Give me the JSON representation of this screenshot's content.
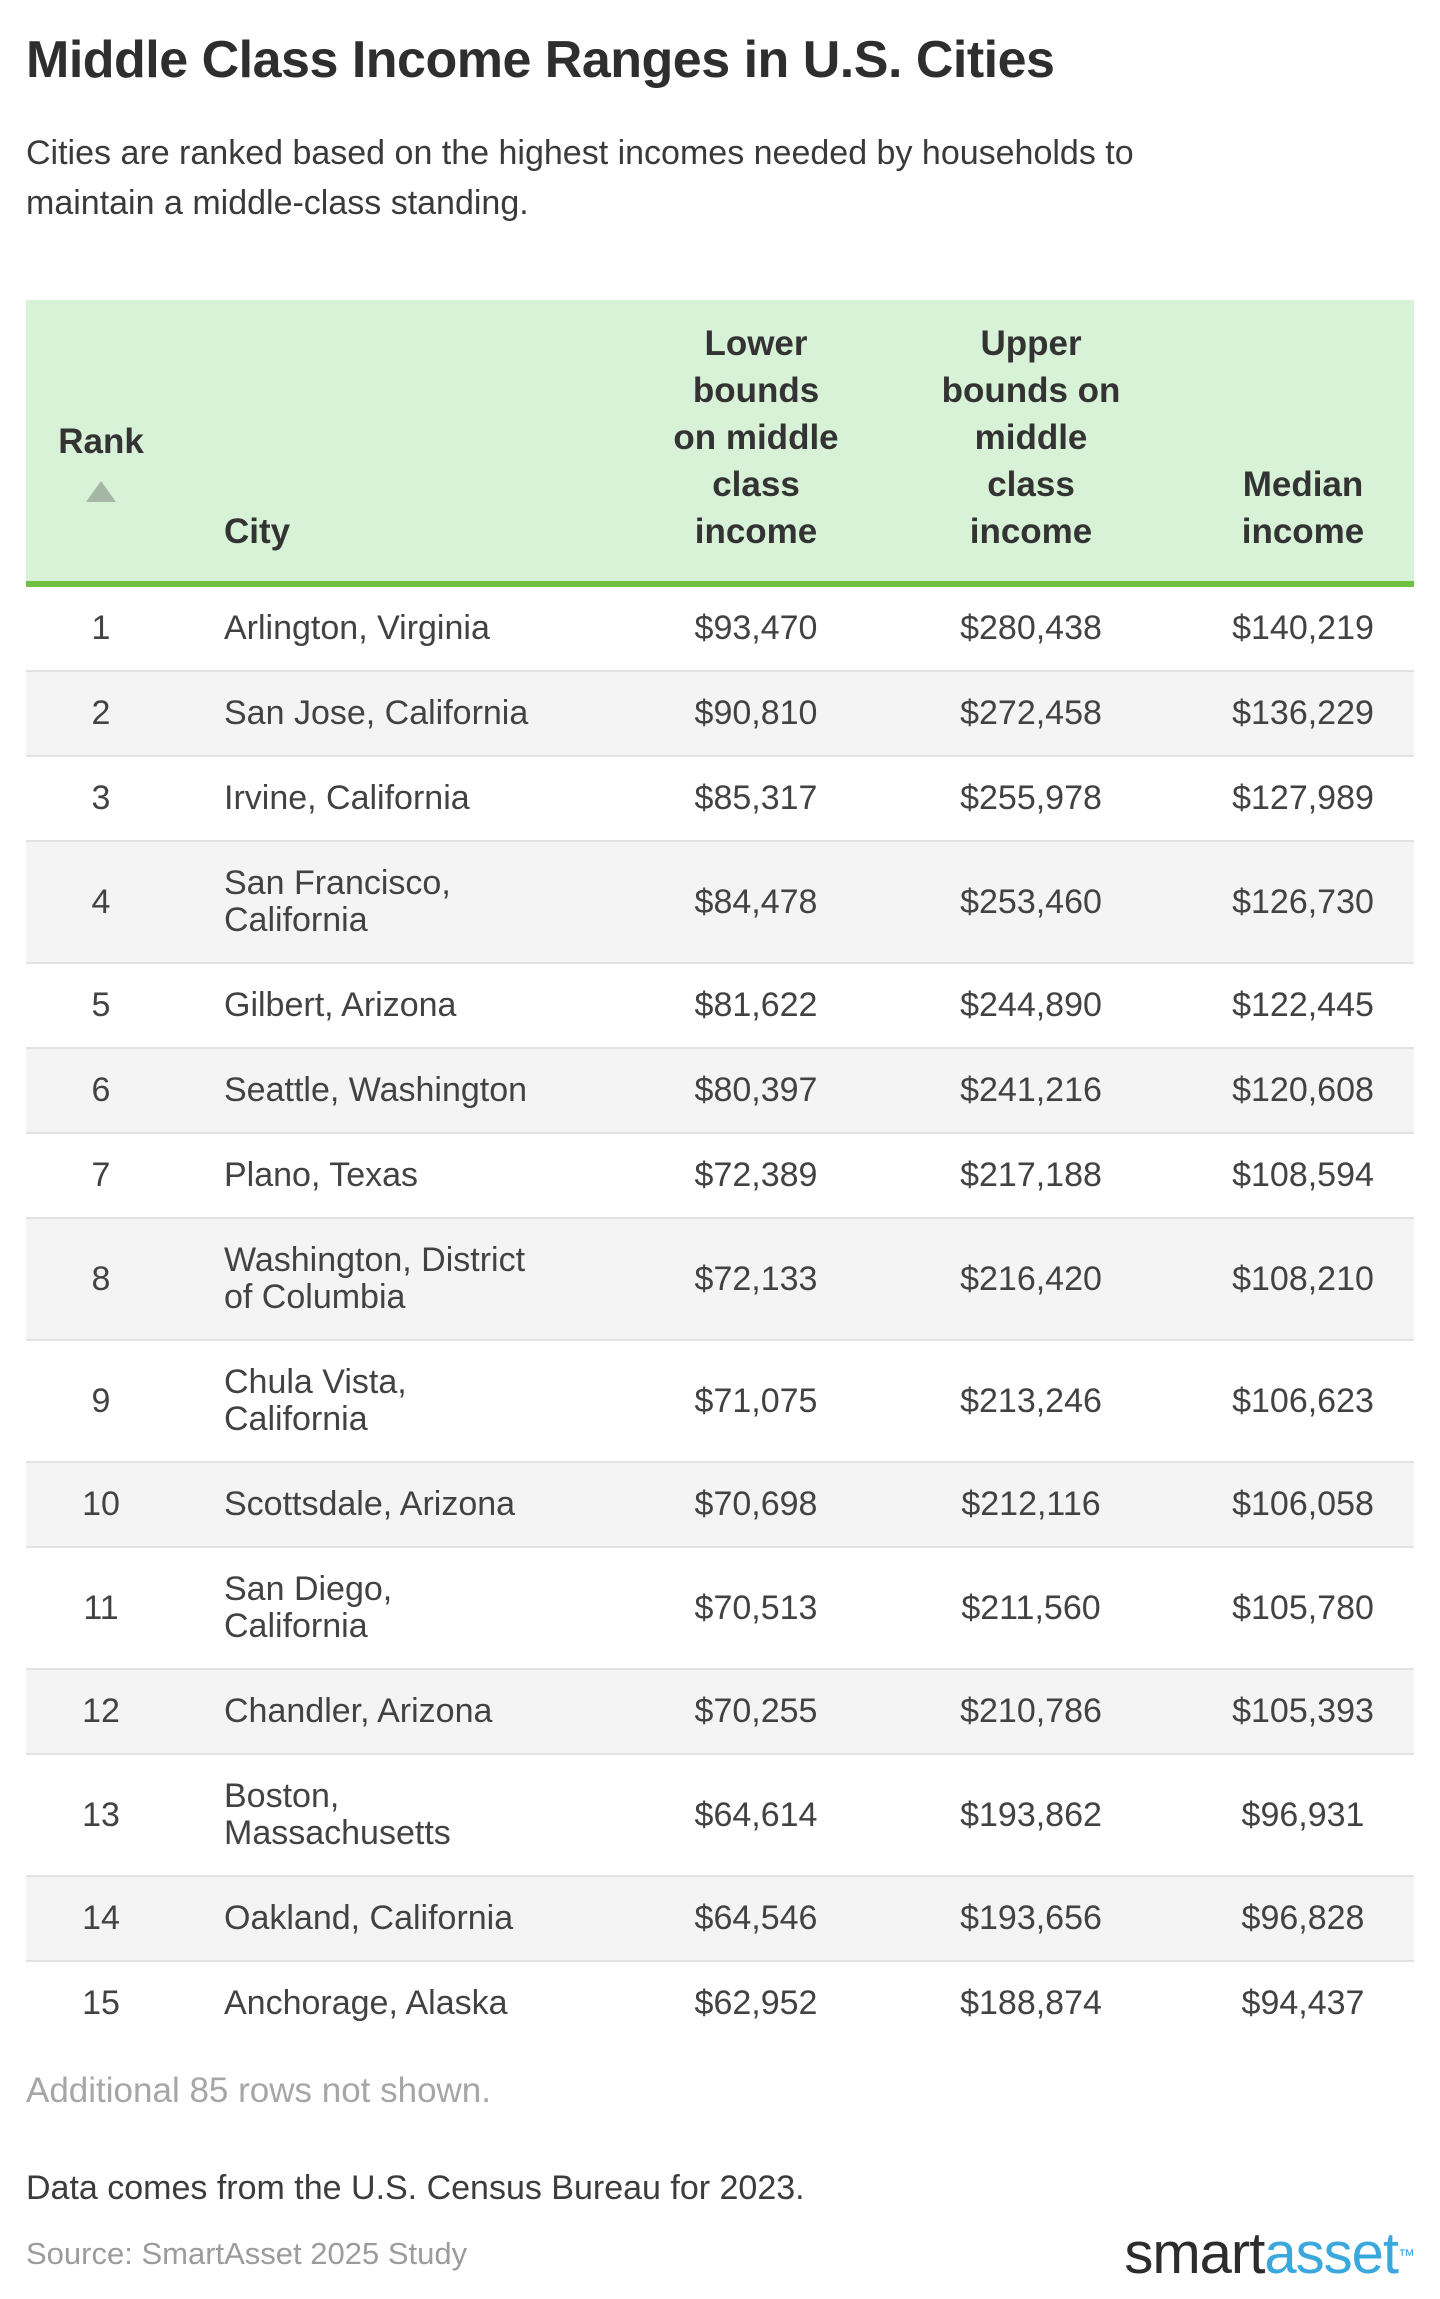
{
  "page": {
    "title": "Middle Class Income Ranges in U.S. Cities",
    "subtitle": "Cities are ranked based on the highest incomes needed by households to\nmaintain a middle-class standing.",
    "additional_note": "Additional 85 rows not shown.",
    "data_note": "Data comes from the U.S. Census Bureau for 2023.",
    "source": "Source: SmartAsset 2025 Study",
    "logo": {
      "part1": "smart",
      "part2": "asset",
      "tm": "™"
    }
  },
  "colors": {
    "header_bg": "#d8f2d8",
    "header_border_green": "#70c043",
    "row_alt_bg": "#f4f4f4",
    "row_divider": "#e2e2e2",
    "text_dark": "#3d3d3d",
    "text_muted": "#a6a6a6",
    "sort_triangle": "#a4b6a4",
    "logo_dark": "#2c2c2c",
    "logo_blue": "#3aa7dd"
  },
  "table": {
    "headers": {
      "rank": "Rank",
      "sort_icon": "ascending-triangle",
      "city": "City",
      "lower": "Lower\nbounds\non middle\nclass\nincome",
      "upper": "Upper\nbounds on\nmiddle\nclass\nincome",
      "median": "Median\nincome"
    },
    "rows": [
      {
        "rank": "1",
        "city": "Arlington, Virginia",
        "lower": "$93,470",
        "upper": "$280,438",
        "median": "$140,219"
      },
      {
        "rank": "2",
        "city": "San Jose, California",
        "lower": "$90,810",
        "upper": "$272,458",
        "median": "$136,229"
      },
      {
        "rank": "3",
        "city": "Irvine, California",
        "lower": "$85,317",
        "upper": "$255,978",
        "median": "$127,989"
      },
      {
        "rank": "4",
        "city": "San Francisco,\nCalifornia",
        "lower": "$84,478",
        "upper": "$253,460",
        "median": "$126,730"
      },
      {
        "rank": "5",
        "city": "Gilbert, Arizona",
        "lower": "$81,622",
        "upper": "$244,890",
        "median": "$122,445"
      },
      {
        "rank": "6",
        "city": "Seattle, Washington",
        "lower": "$80,397",
        "upper": "$241,216",
        "median": "$120,608"
      },
      {
        "rank": "7",
        "city": "Plano, Texas",
        "lower": "$72,389",
        "upper": "$217,188",
        "median": "$108,594"
      },
      {
        "rank": "8",
        "city": "Washington, District\nof Columbia",
        "lower": "$72,133",
        "upper": "$216,420",
        "median": "$108,210"
      },
      {
        "rank": "9",
        "city": "Chula Vista,\nCalifornia",
        "lower": "$71,075",
        "upper": "$213,246",
        "median": "$106,623"
      },
      {
        "rank": "10",
        "city": "Scottsdale, Arizona",
        "lower": "$70,698",
        "upper": "$212,116",
        "median": "$106,058"
      },
      {
        "rank": "11",
        "city": "San Diego,\nCalifornia",
        "lower": "$70,513",
        "upper": "$211,560",
        "median": "$105,780"
      },
      {
        "rank": "12",
        "city": "Chandler, Arizona",
        "lower": "$70,255",
        "upper": "$210,786",
        "median": "$105,393"
      },
      {
        "rank": "13",
        "city": "Boston,\nMassachusetts",
        "lower": "$64,614",
        "upper": "$193,862",
        "median": "$96,931"
      },
      {
        "rank": "14",
        "city": "Oakland, California",
        "lower": "$64,546",
        "upper": "$193,656",
        "median": "$96,828"
      },
      {
        "rank": "15",
        "city": "Anchorage, Alaska",
        "lower": "$62,952",
        "upper": "$188,874",
        "median": "$94,437"
      }
    ]
  },
  "chart_data": {
    "type": "table",
    "title": "Middle Class Income Ranges in U.S. Cities",
    "subtitle": "Cities are ranked based on the highest incomes needed by households to maintain a middle-class standing.",
    "columns": [
      "Rank",
      "City",
      "Lower bounds on middle class income",
      "Upper bounds on middle class income",
      "Median income"
    ],
    "rows": [
      [
        1,
        "Arlington, Virginia",
        93470,
        280438,
        140219
      ],
      [
        2,
        "San Jose, California",
        90810,
        272458,
        136229
      ],
      [
        3,
        "Irvine, California",
        85317,
        255978,
        127989
      ],
      [
        4,
        "San Francisco, California",
        84478,
        253460,
        126730
      ],
      [
        5,
        "Gilbert, Arizona",
        81622,
        244890,
        122445
      ],
      [
        6,
        "Seattle, Washington",
        80397,
        241216,
        120608
      ],
      [
        7,
        "Plano, Texas",
        72389,
        217188,
        108594
      ],
      [
        8,
        "Washington, District of Columbia",
        72133,
        216420,
        108210
      ],
      [
        9,
        "Chula Vista, California",
        71075,
        213246,
        106623
      ],
      [
        10,
        "Scottsdale, Arizona",
        70698,
        212116,
        106058
      ],
      [
        11,
        "San Diego, California",
        70513,
        211560,
        105780
      ],
      [
        12,
        "Chandler, Arizona",
        70255,
        210786,
        105393
      ],
      [
        13,
        "Boston, Massachusetts",
        64614,
        193862,
        96931
      ],
      [
        14,
        "Oakland, California",
        64546,
        193656,
        96828
      ],
      [
        15,
        "Anchorage, Alaska",
        62952,
        188874,
        94437
      ]
    ],
    "notes": [
      "Additional 85 rows not shown.",
      "Data comes from the U.S. Census Bureau for 2023.",
      "Source: SmartAsset 2025 Study"
    ],
    "sort": {
      "column": "Rank",
      "direction": "ascending"
    }
  }
}
